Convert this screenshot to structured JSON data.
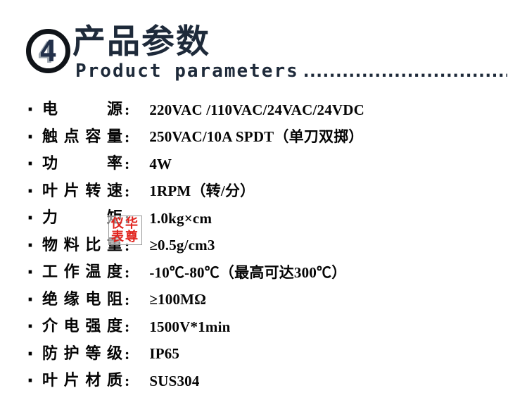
{
  "header": {
    "badge_number": "4",
    "title": "产品参数",
    "subtitle": "Product parameters",
    "subtitle_dots": "....................................",
    "accent_color": "#1e2a3a"
  },
  "parameters": {
    "bullet": "·",
    "colon": ":",
    "rows": [
      {
        "label": "电源",
        "value": "220VAC /110VAC/24VAC/24VDC"
      },
      {
        "label": "触点容量",
        "value": "250VAC/10A SPDT（单刀双掷）"
      },
      {
        "label": "功率",
        "value": "4W"
      },
      {
        "label": "叶片转速",
        "value": "1RPM（转/分）"
      },
      {
        "label": "力矩",
        "value": "1.0kg×cm"
      },
      {
        "label": "物料比重",
        "value": "≥0.5g/cm3"
      },
      {
        "label": "工作温度",
        "value": "-10℃-80℃（最高可达300℃）"
      },
      {
        "label": "绝缘电阻",
        "value": "≥100MΩ"
      },
      {
        "label": "介电强度",
        "value": "1500V*1min"
      },
      {
        "label": "防护等级",
        "value": "IP65"
      },
      {
        "label": "叶片材质",
        "value": "SUS304"
      }
    ]
  },
  "watermark": {
    "line1": "仪华",
    "line2": "表尊",
    "color": "#e1231d"
  }
}
